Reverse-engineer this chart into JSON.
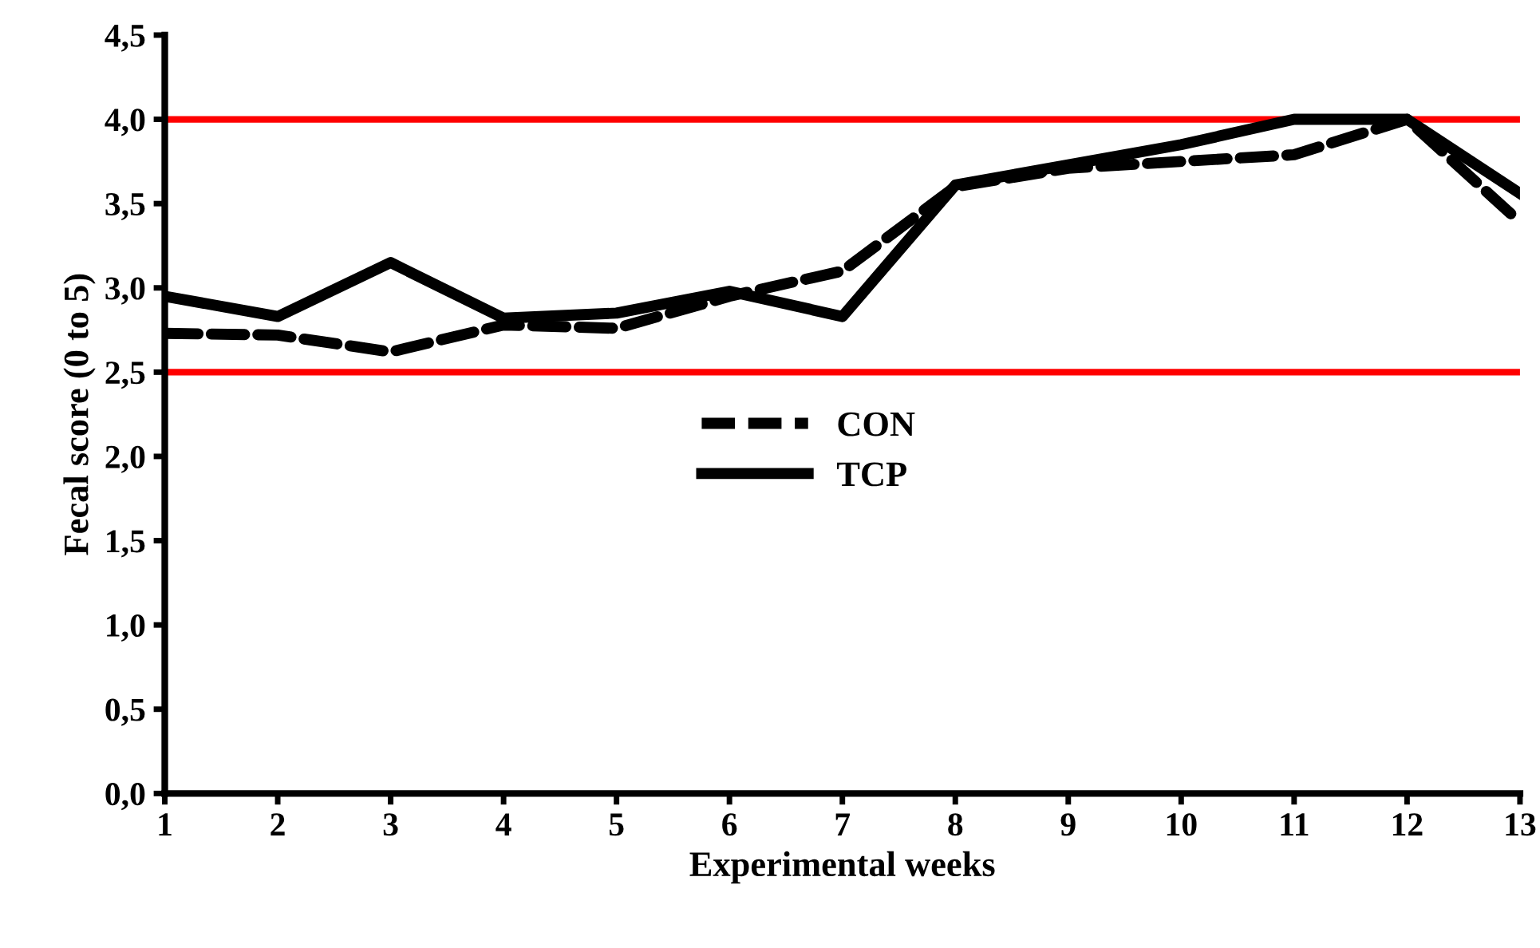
{
  "chart_data": {
    "type": "line",
    "xlabel": "Experimental weeks",
    "ylabel": "Fecal score (0 to 5)",
    "x": [
      1,
      2,
      3,
      4,
      5,
      6,
      7,
      8,
      9,
      10,
      11,
      12,
      13
    ],
    "series": [
      {
        "name": "CON",
        "color": "#000000",
        "line_style": "dashed",
        "values": [
          2.73,
          2.72,
          2.62,
          2.78,
          2.76,
          2.95,
          3.1,
          3.6,
          3.71,
          3.75,
          3.79,
          4.0,
          3.39
        ]
      },
      {
        "name": "TCP",
        "color": "#000000",
        "line_style": "solid",
        "values": [
          2.95,
          2.83,
          3.15,
          2.82,
          2.85,
          2.98,
          2.83,
          3.61,
          3.73,
          3.85,
          4.0,
          4.0,
          3.56
        ]
      }
    ],
    "xlim": [
      1,
      13
    ],
    "xticks": [
      1,
      2,
      3,
      4,
      5,
      6,
      7,
      8,
      9,
      10,
      11,
      12,
      13
    ],
    "ylim": [
      0,
      4.5
    ],
    "yticks": [
      {
        "value": 0,
        "label": "0,0"
      },
      {
        "value": 0.5,
        "label": "0,5"
      },
      {
        "value": 1,
        "label": "1,0"
      },
      {
        "value": 1.5,
        "label": "1,5"
      },
      {
        "value": 2,
        "label": "2,0"
      },
      {
        "value": 2.5,
        "label": "2,5"
      },
      {
        "value": 3,
        "label": "3,0"
      },
      {
        "value": 3.5,
        "label": "3,5"
      },
      {
        "value": 4,
        "label": "4,0"
      },
      {
        "value": 4.5,
        "label": "4,5"
      }
    ],
    "ref_lines": [
      {
        "axis": "y",
        "value": 4.0,
        "color": "#ff0000"
      },
      {
        "axis": "y",
        "value": 2.5,
        "color": "#ff0000"
      }
    ],
    "grid": false,
    "legend": "center",
    "marker": "none"
  }
}
